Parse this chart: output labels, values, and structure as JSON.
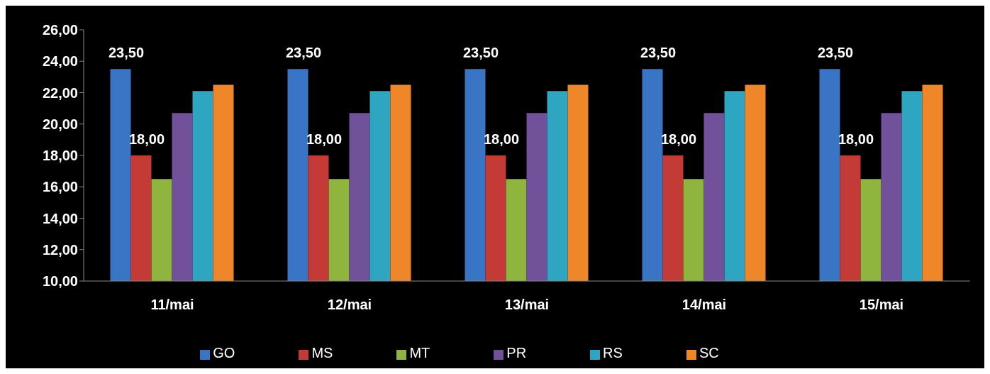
{
  "chart_data": {
    "type": "bar",
    "categories": [
      "11/mai",
      "12/mai",
      "13/mai",
      "14/mai",
      "15/mai"
    ],
    "series": [
      {
        "name": "GO",
        "color": "#3a74c4",
        "values": [
          23.5,
          23.5,
          23.5,
          23.5,
          23.5
        ],
        "value_labels": [
          "23,50",
          "23,50",
          "23,50",
          "23,50",
          "23,50"
        ]
      },
      {
        "name": "MS",
        "color": "#c43a36",
        "values": [
          18,
          18,
          18,
          18,
          18
        ],
        "value_labels": [
          "18,00",
          "18,00",
          "18,00",
          "18,00",
          "18,00"
        ]
      },
      {
        "name": "MT",
        "color": "#8fb53e",
        "values": [
          16.5,
          16.5,
          16.5,
          16.5,
          16.5
        ]
      },
      {
        "name": "PR",
        "color": "#71519a",
        "values": [
          20.7,
          20.7,
          20.7,
          20.7,
          20.7
        ]
      },
      {
        "name": "RS",
        "color": "#2ea6c2",
        "values": [
          22.1,
          22.1,
          22.1,
          22.1,
          22.1
        ]
      },
      {
        "name": "SC",
        "color": "#f0862a",
        "values": [
          22.5,
          22.5,
          22.5,
          22.5,
          22.5
        ]
      }
    ],
    "ylim": [
      10,
      26
    ],
    "yticks": [
      {
        "value": 10,
        "label": "10,00"
      },
      {
        "value": 12,
        "label": "12,00"
      },
      {
        "value": 14,
        "label": "14,00"
      },
      {
        "value": 16,
        "label": "16,00"
      },
      {
        "value": 18,
        "label": "18,00"
      },
      {
        "value": 20,
        "label": "20,00"
      },
      {
        "value": 22,
        "label": "22,00"
      },
      {
        "value": 24,
        "label": "24,00"
      },
      {
        "value": 26,
        "label": "26,00"
      }
    ],
    "grid": false,
    "legend": "bottom"
  }
}
